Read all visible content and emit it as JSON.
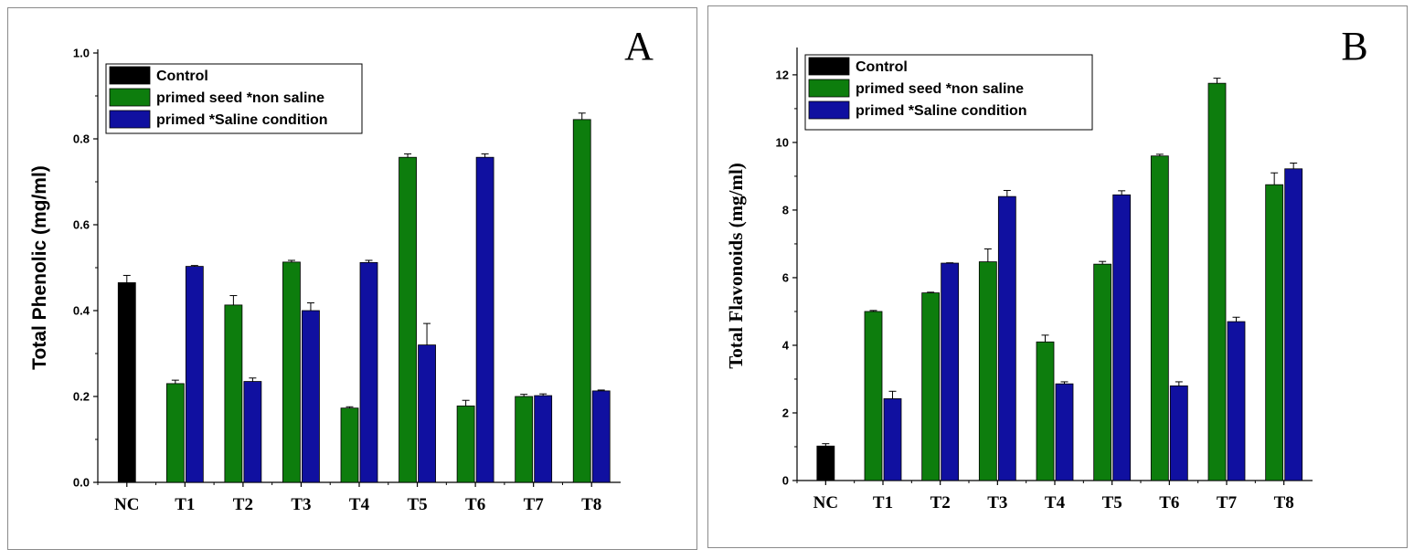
{
  "chart_data": [
    {
      "type": "bar",
      "panel_label": "A",
      "ylabel": "Total Phenolic (mg/ml)",
      "xlabel": "",
      "ylim": [
        0,
        1.0
      ],
      "yticks": [
        "0.0",
        "0.2",
        "0.4",
        "0.6",
        "0.8",
        "1.0"
      ],
      "categories": [
        "NC",
        "T1",
        "T2",
        "T3",
        "T4",
        "T5",
        "T6",
        "T7",
        "T8"
      ],
      "legend_position": "top-left",
      "series": [
        {
          "name": "Control",
          "color": "#000000",
          "values": [
            0.465,
            null,
            null,
            null,
            null,
            null,
            null,
            null,
            null
          ],
          "errors": [
            0.017,
            null,
            null,
            null,
            null,
            null,
            null,
            null,
            null
          ]
        },
        {
          "name": "primed seed *non saline",
          "color": "#0d7d0d",
          "values": [
            null,
            0.23,
            0.413,
            0.513,
            0.173,
            0.757,
            0.178,
            0.2,
            0.845
          ],
          "errors": [
            null,
            0.008,
            0.022,
            0.004,
            0.003,
            0.008,
            0.013,
            0.005,
            0.015
          ]
        },
        {
          "name": "primed *Saline condition",
          "color": "#1010a0",
          "values": [
            null,
            0.503,
            0.235,
            0.4,
            0.512,
            0.32,
            0.757,
            0.202,
            0.213
          ],
          "errors": [
            null,
            0.002,
            0.008,
            0.018,
            0.005,
            0.05,
            0.008,
            0.004,
            0.002
          ]
        }
      ]
    },
    {
      "type": "bar",
      "panel_label": "B",
      "ylabel": "Total Flavonoids (mg/ml)",
      "xlabel": "",
      "ylim": [
        0,
        12.7
      ],
      "yticks": [
        "0",
        "2",
        "4",
        "6",
        "8",
        "10",
        "12"
      ],
      "categories": [
        "NC",
        "T1",
        "T2",
        "T3",
        "T4",
        "T5",
        "T6",
        "T7",
        "T8"
      ],
      "legend_position": "top-left",
      "series": [
        {
          "name": "Control",
          "color": "#000000",
          "values": [
            1.02,
            null,
            null,
            null,
            null,
            null,
            null,
            null,
            null
          ],
          "errors": [
            0.07,
            null,
            null,
            null,
            null,
            null,
            null,
            null,
            null
          ]
        },
        {
          "name": "primed seed *non saline",
          "color": "#0d7d0d",
          "values": [
            null,
            5.0,
            5.55,
            6.47,
            4.1,
            6.4,
            9.6,
            11.75,
            8.75
          ],
          "errors": [
            null,
            0.03,
            0.02,
            0.38,
            0.2,
            0.08,
            0.05,
            0.15,
            0.35
          ]
        },
        {
          "name": "primed *Saline condition",
          "color": "#1010a0",
          "values": [
            null,
            2.42,
            6.43,
            8.4,
            2.86,
            8.45,
            2.8,
            4.7,
            9.22
          ],
          "errors": [
            null,
            0.22,
            0.01,
            0.18,
            0.06,
            0.12,
            0.12,
            0.13,
            0.17
          ]
        }
      ]
    }
  ]
}
